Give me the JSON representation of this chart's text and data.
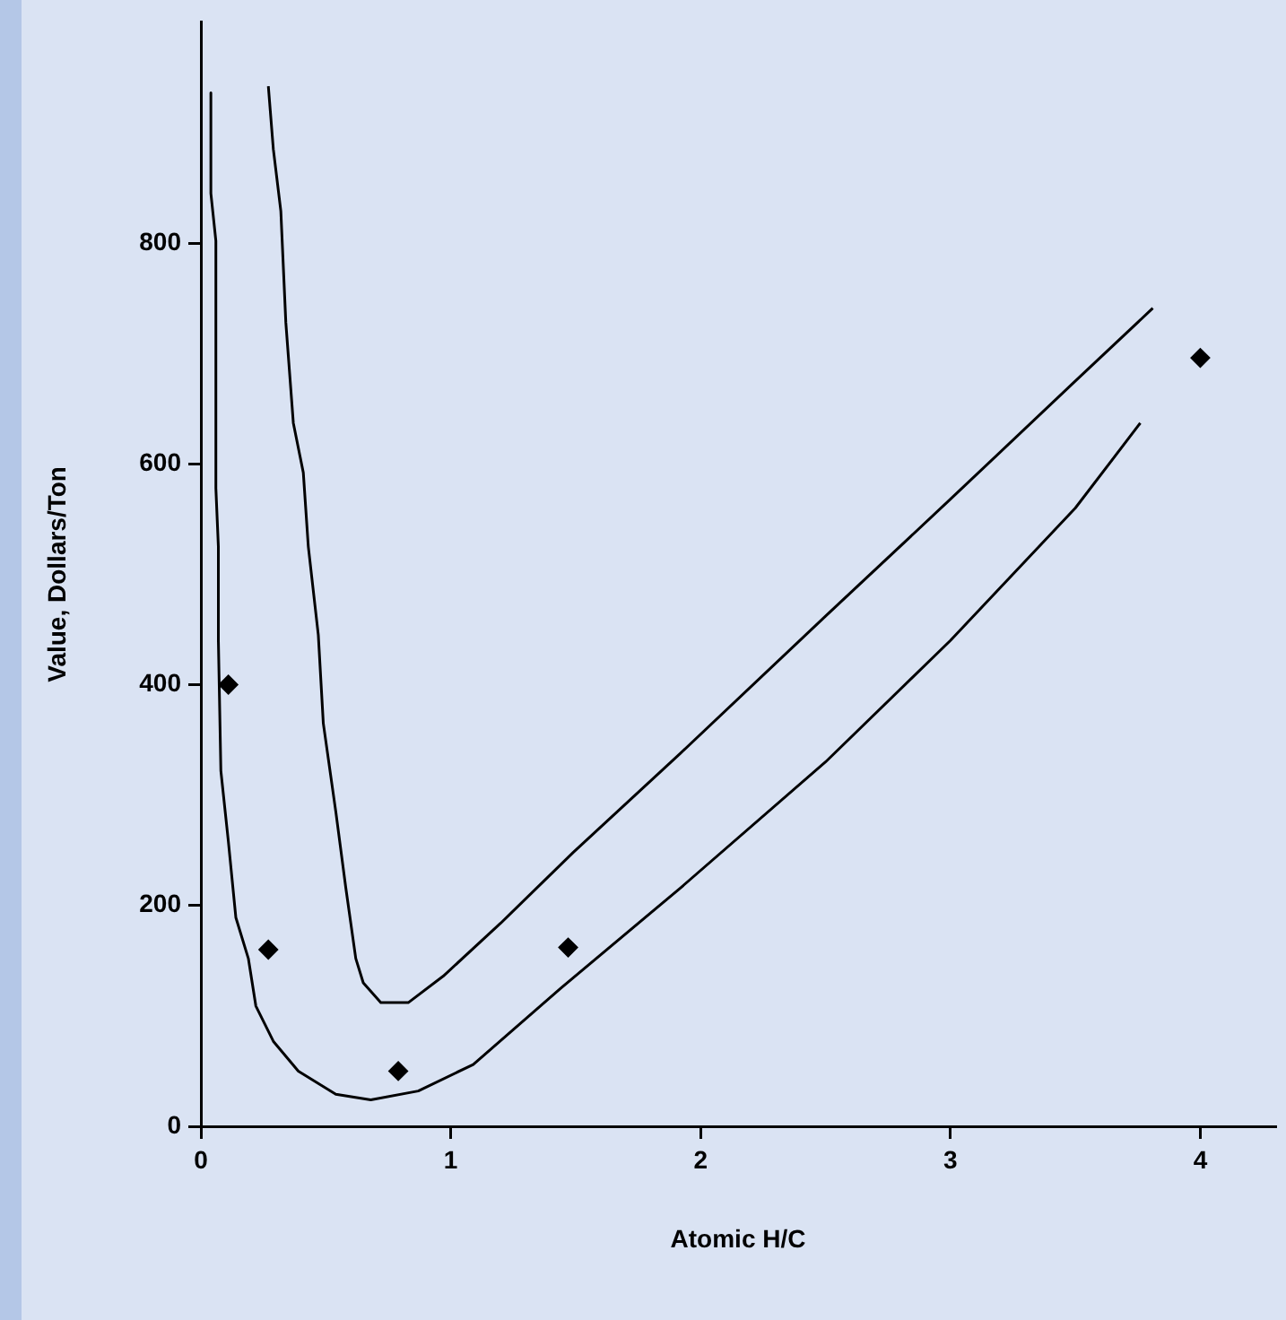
{
  "chart_data": {
    "type": "line",
    "xlabel": "Atomic H/C",
    "ylabel": "Value, Dollars/Ton",
    "xlim": [
      0,
      4.3
    ],
    "xticks": [
      0,
      1,
      2,
      3,
      4
    ],
    "ylim": [
      0,
      1000
    ],
    "yticks": [
      0,
      200,
      400,
      600,
      800
    ],
    "grid": false,
    "legend": false,
    "line_style": "solid",
    "series": [
      {
        "color": "#000000",
        "marker": "none",
        "x": [
          0.04,
          0.04,
          0.06,
          0.06,
          0.07,
          0.07,
          0.08,
          0.11,
          0.14,
          0.19,
          0.22,
          0.29,
          0.39,
          0.54,
          0.68,
          0.87,
          1.09,
          1.44,
          1.92,
          2.5,
          3,
          3.5,
          3.76
        ],
        "values": [
          936,
          845,
          802,
          578,
          525,
          440,
          322,
          258,
          189,
          152,
          109,
          77,
          50,
          29,
          24,
          32,
          56,
          125,
          216,
          330,
          440,
          560,
          637
        ]
      },
      {
        "color": "#000000",
        "marker": "none",
        "x": [
          0.27,
          0.29,
          0.32,
          0.34,
          0.37,
          0.41,
          0.43,
          0.47,
          0.49,
          0.54,
          0.58,
          0.62,
          0.65,
          0.72,
          0.83,
          0.97,
          1.2,
          1.49,
          1.92,
          2.5,
          3,
          3.5,
          3.81
        ],
        "values": [
          942,
          885,
          829,
          728,
          637,
          592,
          525,
          445,
          365,
          285,
          216,
          152,
          130,
          112,
          112,
          136,
          184,
          248,
          338,
          462,
          568,
          675,
          741
        ]
      },
      {
        "type": "scatter",
        "color": "#000000",
        "marker": "diamond",
        "x": [
          0.11,
          0.27,
          0.79,
          1.47,
          4.0
        ],
        "values": [
          400,
          160,
          50,
          162,
          696
        ]
      }
    ]
  }
}
